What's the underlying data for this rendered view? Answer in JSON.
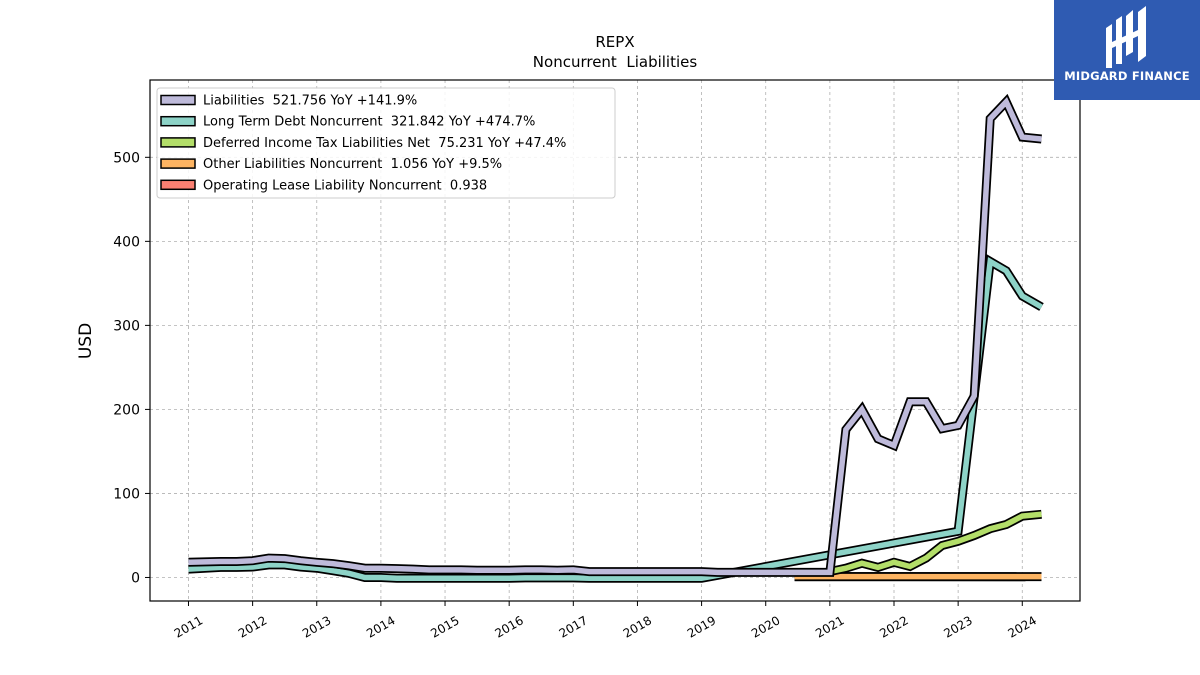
{
  "brand": {
    "name": "MIDGARD FINANCE",
    "background": "#2f5bb2"
  },
  "chart_data": {
    "type": "line",
    "title": "REPX",
    "subtitle": "Noncurrent  Liabilities",
    "xlabel": "",
    "ylabel": "USD",
    "xlim": [
      2010.4,
      2024.9
    ],
    "ylim": [
      -28,
      592
    ],
    "x_ticks": [
      2011,
      2012,
      2013,
      2014,
      2015,
      2016,
      2017,
      2018,
      2019,
      2020,
      2021,
      2022,
      2023,
      2024
    ],
    "x_tick_labels": [
      "2011",
      "2012",
      "2013",
      "2014",
      "2015",
      "2016",
      "2017",
      "2018",
      "2019",
      "2020",
      "2021",
      "2022",
      "2023",
      "2024"
    ],
    "y_ticks": [
      0,
      100,
      200,
      300,
      400,
      500
    ],
    "y_tick_labels": [
      "0",
      "100",
      "200",
      "300",
      "400",
      "500"
    ],
    "grid": true,
    "legend_position": "top-left",
    "series": [
      {
        "name": "Liabilities",
        "legend_label": "Liabilities  521.756 YoY +141.9%",
        "color": "#bebada",
        "points": [
          [
            2011,
            18
          ],
          [
            2011.25,
            18.5
          ],
          [
            2011.5,
            19
          ],
          [
            2011.75,
            19
          ],
          [
            2012,
            20
          ],
          [
            2012.25,
            23
          ],
          [
            2012.5,
            22.5
          ],
          [
            2012.75,
            20
          ],
          [
            2013,
            18
          ],
          [
            2013.25,
            16.5
          ],
          [
            2013.5,
            14
          ],
          [
            2013.75,
            11
          ],
          [
            2014,
            11
          ],
          [
            2014.25,
            10.5
          ],
          [
            2014.5,
            10
          ],
          [
            2014.75,
            9
          ],
          [
            2015,
            9
          ],
          [
            2015.25,
            9
          ],
          [
            2015.5,
            8.5
          ],
          [
            2015.75,
            8.5
          ],
          [
            2016,
            8.5
          ],
          [
            2016.25,
            9
          ],
          [
            2016.5,
            9
          ],
          [
            2016.75,
            8.5
          ],
          [
            2017,
            9
          ],
          [
            2017.25,
            7
          ],
          [
            2017.5,
            7
          ],
          [
            2017.75,
            7
          ],
          [
            2018,
            7
          ],
          [
            2018.25,
            7
          ],
          [
            2018.5,
            7
          ],
          [
            2018.75,
            7
          ],
          [
            2019,
            7
          ],
          [
            2019.25,
            6
          ],
          [
            2019.5,
            6
          ],
          [
            2019.75,
            6
          ],
          [
            2020,
            6
          ],
          [
            2020.25,
            6
          ],
          [
            2020.5,
            6
          ],
          [
            2020.75,
            6
          ],
          [
            2021,
            6
          ],
          [
            2021.25,
            176
          ],
          [
            2021.5,
            200
          ],
          [
            2021.75,
            165
          ],
          [
            2022,
            157
          ],
          [
            2022.25,
            209
          ],
          [
            2022.5,
            209
          ],
          [
            2022.75,
            177
          ],
          [
            2023,
            181
          ],
          [
            2023.25,
            216
          ],
          [
            2023.5,
            546
          ],
          [
            2023.75,
            566
          ],
          [
            2024,
            524
          ],
          [
            2024.3,
            521.756
          ]
        ]
      },
      {
        "name": "Long Term Debt Noncurrent",
        "legend_label": "Long Term Debt Noncurrent  321.842 YoY +474.7%",
        "color": "#8dd3c7",
        "points": [
          [
            2011,
            10
          ],
          [
            2011.25,
            11
          ],
          [
            2011.5,
            12
          ],
          [
            2011.75,
            12
          ],
          [
            2012,
            12.5
          ],
          [
            2012.25,
            15
          ],
          [
            2012.5,
            15
          ],
          [
            2012.75,
            12.5
          ],
          [
            2013,
            11
          ],
          [
            2013.25,
            8
          ],
          [
            2013.5,
            5
          ],
          [
            2013.75,
            0
          ],
          [
            2014,
            0
          ],
          [
            2014.25,
            -1
          ],
          [
            2014.5,
            -1
          ],
          [
            2014.75,
            -1
          ],
          [
            2015,
            -1
          ],
          [
            2015.25,
            -1
          ],
          [
            2015.5,
            -1
          ],
          [
            2015.75,
            -1
          ],
          [
            2016,
            -1
          ],
          [
            2016.25,
            -0.5
          ],
          [
            2016.5,
            -0.5
          ],
          [
            2016.75,
            -0.5
          ],
          [
            2017,
            -0.5
          ],
          [
            2017.25,
            -1
          ],
          [
            2017.5,
            -1
          ],
          [
            2017.75,
            -1
          ],
          [
            2018,
            -1
          ],
          [
            2018.25,
            -1
          ],
          [
            2018.5,
            -1
          ],
          [
            2018.75,
            -1
          ],
          [
            2019,
            -1
          ],
          [
            2023,
            55
          ],
          [
            2023.5,
            376
          ],
          [
            2023.75,
            365
          ],
          [
            2024,
            335
          ],
          [
            2024.3,
            321.842
          ]
        ]
      },
      {
        "name": "Deferred Income Tax Liabilities Net",
        "legend_label": "Deferred Income Tax Liabilities Net  75.231 YoY +47.4%",
        "color": "#b3de69",
        "points": [
          [
            2021,
            7
          ],
          [
            2021.25,
            11
          ],
          [
            2021.5,
            17
          ],
          [
            2021.75,
            12
          ],
          [
            2022,
            18
          ],
          [
            2022.25,
            13
          ],
          [
            2022.5,
            23
          ],
          [
            2022.75,
            38
          ],
          [
            2023,
            43
          ],
          [
            2023.25,
            50
          ],
          [
            2023.5,
            58
          ],
          [
            2023.75,
            63
          ],
          [
            2024,
            73
          ],
          [
            2024.3,
            75.231
          ]
        ]
      },
      {
        "name": "Other Liabilities Noncurrent",
        "legend_label": "Other Liabilities Noncurrent  1.056 YoY +9.5%",
        "color": "#fdb462",
        "points": [
          [
            2020.45,
            1
          ],
          [
            2024.3,
            1.056
          ]
        ]
      },
      {
        "name": "Operating Lease Liability Noncurrent",
        "legend_label": "Operating Lease Liability Noncurrent  0.938",
        "color": "#fb8072",
        "points": [
          [
            2020.45,
            1
          ],
          [
            2024.05,
            0.938
          ]
        ]
      }
    ]
  }
}
